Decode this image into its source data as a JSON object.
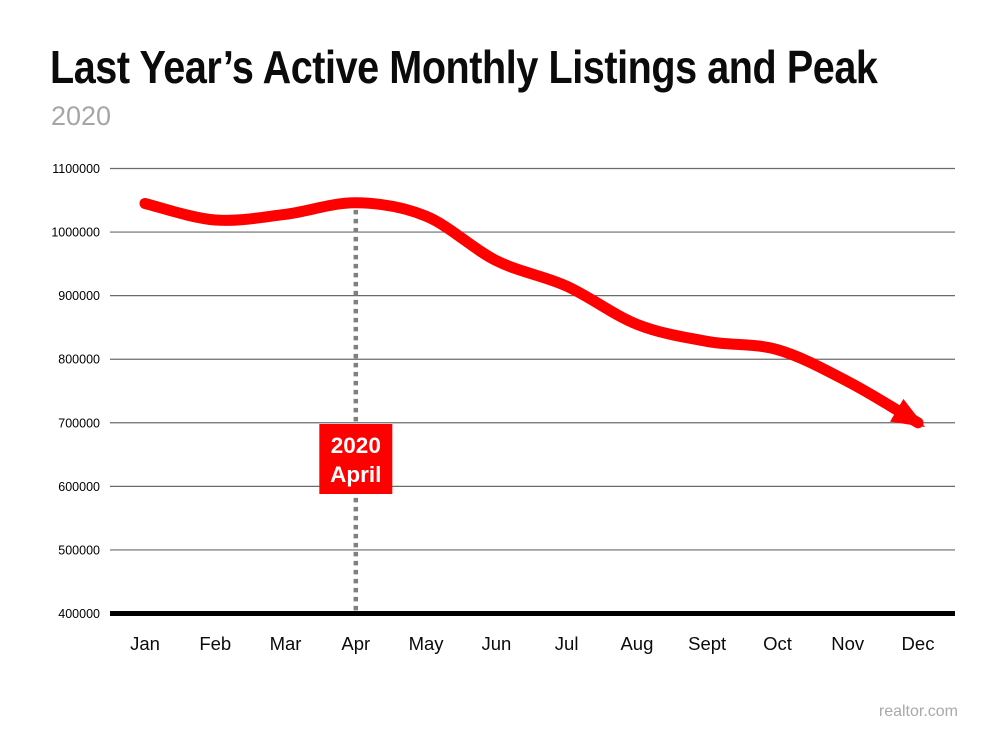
{
  "header": {
    "title": "Last Year’s Active Monthly Listings and Peak",
    "subtitle": "2020"
  },
  "watermark": "realtor.com",
  "colors": {
    "line": "#fe0000",
    "annotation_box": "#fe0000",
    "annotation_text": "#ffffff",
    "gridline": "#6b6b6b",
    "axis": "#000000",
    "dotted_line": "#808080",
    "tick_text": "#000000",
    "subtitle_gray": "#a6a6a6"
  },
  "chart_data": {
    "type": "line",
    "title": "Last Year’s Active Monthly Listings and Peak",
    "subtitle": "2020",
    "categories": [
      "Jan",
      "Feb",
      "Mar",
      "Apr",
      "May",
      "Jun",
      "Jul",
      "Aug",
      "Sept",
      "Oct",
      "Nov",
      "Dec"
    ],
    "values": [
      1045000,
      1019000,
      1028000,
      1046000,
      1025000,
      955000,
      915000,
      855000,
      828000,
      815000,
      765000,
      700000
    ],
    "peak": {
      "category": "Apr",
      "value": 1046000
    },
    "ylim": [
      400000,
      1100000
    ],
    "ytick_step": 100000,
    "ytick_labels": [
      "400000",
      "500000",
      "600000",
      "700000",
      "800000",
      "900000",
      "1000000",
      "1100000"
    ],
    "xlabel": "",
    "ylabel": "",
    "grid": "horizontal",
    "legend": "none",
    "annotation": {
      "lines": [
        "2020",
        "April"
      ],
      "target_category": "Apr"
    }
  }
}
